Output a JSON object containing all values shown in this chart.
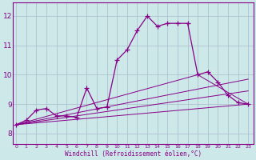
{
  "xlabel": "Windchill (Refroidissement éolien,°C)",
  "bg_color": "#cce8e8",
  "plot_bg_color": "#cce8e8",
  "line_color": "#880088",
  "grid_color": "#aabbcc",
  "x_ticks": [
    0,
    1,
    2,
    3,
    4,
    5,
    6,
    7,
    8,
    9,
    10,
    11,
    12,
    13,
    14,
    15,
    16,
    17,
    18,
    19,
    20,
    21,
    22,
    23
  ],
  "y_ticks": [
    8,
    9,
    10,
    11,
    12
  ],
  "xlim": [
    -0.3,
    23.5
  ],
  "ylim": [
    7.65,
    12.45
  ],
  "main_x": [
    0,
    1,
    2,
    3,
    4,
    5,
    6,
    7,
    8,
    9,
    10,
    11,
    12,
    13,
    14,
    15,
    16,
    17,
    18,
    19,
    20,
    21,
    22,
    23
  ],
  "main_y": [
    8.3,
    8.45,
    8.8,
    8.85,
    8.6,
    8.6,
    8.55,
    9.55,
    8.85,
    8.9,
    10.5,
    10.85,
    11.5,
    12.0,
    11.65,
    11.75,
    11.75,
    11.75,
    10.0,
    10.1,
    9.75,
    9.3,
    9.05,
    9.0
  ],
  "line1_x": [
    0,
    23
  ],
  "line1_y": [
    8.3,
    9.0
  ],
  "line2_x": [
    0,
    23
  ],
  "line2_y": [
    8.3,
    9.85
  ],
  "line3_x": [
    0,
    18,
    23
  ],
  "line3_y": [
    8.3,
    10.0,
    9.0
  ],
  "line4_x": [
    0,
    23
  ],
  "line4_y": [
    8.3,
    9.45
  ]
}
